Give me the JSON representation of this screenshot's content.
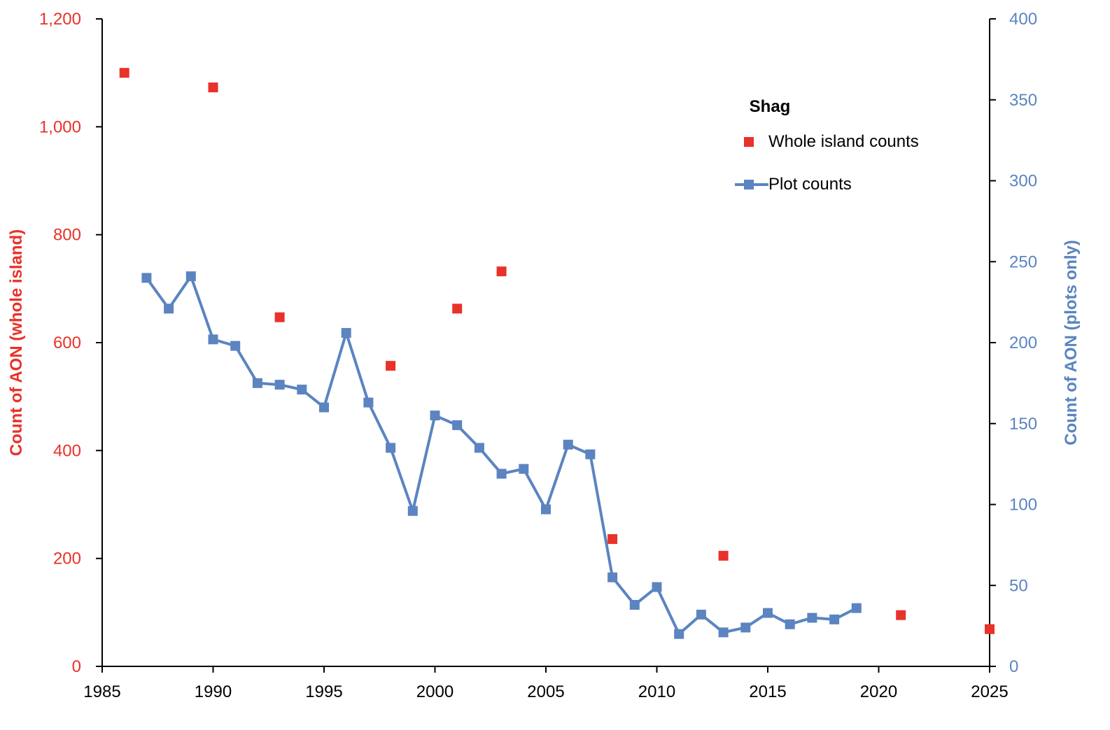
{
  "chart_data": {
    "type": "line",
    "legend_title": "Shag",
    "legend_position": "top-right",
    "grid": false,
    "xlim": [
      1985,
      2025
    ],
    "x_ticks": [
      1985,
      1990,
      1995,
      2000,
      2005,
      2010,
      2015,
      2020,
      2025
    ],
    "y_left": {
      "label": "Count of AON (whole island)",
      "lim": [
        0,
        1200
      ],
      "ticks": [
        0,
        200,
        400,
        600,
        800,
        1000,
        1200
      ],
      "tick_labels": [
        "0",
        "200",
        "400",
        "600",
        "800",
        "1,000",
        "1,200"
      ],
      "color": "#e8322a"
    },
    "y_right": {
      "label": "Count of AON (plots only)",
      "lim": [
        0,
        400
      ],
      "ticks": [
        0,
        50,
        100,
        150,
        200,
        250,
        300,
        350,
        400
      ],
      "tick_labels": [
        "0",
        "50",
        "100",
        "150",
        "200",
        "250",
        "300",
        "350",
        "400"
      ],
      "color": "#5b84c0"
    },
    "series": [
      {
        "name": "Whole island counts",
        "axis": "left",
        "style": "markers",
        "color": "#e8322a",
        "x": [
          1986,
          1990,
          1993,
          1998,
          2001,
          2003,
          2008,
          2013,
          2021,
          2025
        ],
        "y": [
          1100,
          1073,
          647,
          557,
          663,
          732,
          236,
          205,
          95,
          69
        ]
      },
      {
        "name": "Plot counts",
        "axis": "right",
        "style": "line-markers",
        "color": "#5b84c0",
        "x": [
          1987,
          1988,
          1989,
          1990,
          1991,
          1992,
          1993,
          1994,
          1995,
          1996,
          1997,
          1998,
          1999,
          2000,
          2001,
          2002,
          2003,
          2004,
          2005,
          2006,
          2007,
          2008,
          2009,
          2010,
          2011,
          2012,
          2013,
          2014,
          2015,
          2016,
          2017,
          2018,
          2019
        ],
        "y": [
          240,
          221,
          241,
          202,
          198,
          175,
          174,
          171,
          160,
          206,
          163,
          135,
          96,
          155,
          149,
          135,
          119,
          122,
          97,
          137,
          131,
          55,
          38,
          49,
          20,
          32,
          21,
          24,
          33,
          26,
          30,
          29,
          36
        ]
      }
    ]
  }
}
